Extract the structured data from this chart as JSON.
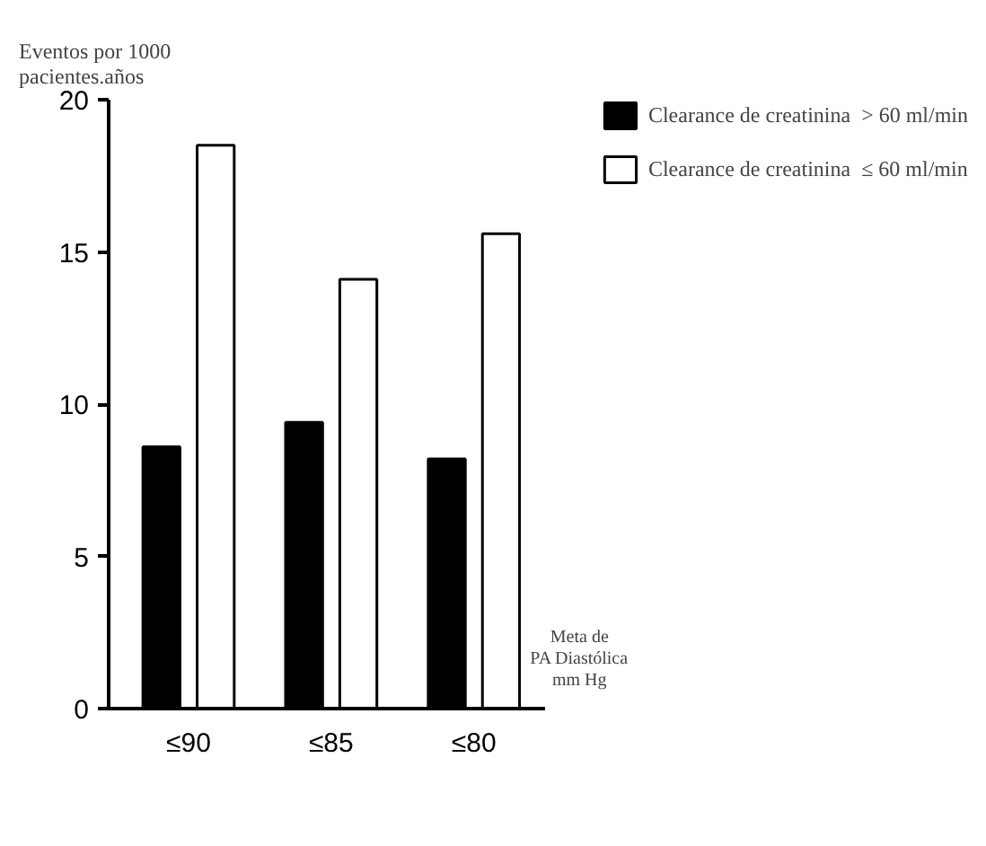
{
  "chart_data": {
    "type": "bar",
    "ylabel": "Eventos por 1000\npacientes.años",
    "xlabel": "Meta de\nPA Diastólica\nmm Hg",
    "categories": [
      "≤90",
      "≤85",
      "≤80"
    ],
    "series": [
      {
        "name": "Clearance de creatinina  > 60 ml/min",
        "color": "#000000",
        "values": [
          8.6,
          9.4,
          8.2
        ]
      },
      {
        "name": "Clearance de creatinina  ≤ 60 ml/min",
        "color": "#ffffff",
        "values": [
          18.5,
          14.1,
          15.6
        ]
      }
    ],
    "ylim": [
      0,
      20
    ],
    "yticks": [
      0,
      5,
      10,
      15,
      20
    ],
    "grid": false,
    "legend": "top right"
  }
}
